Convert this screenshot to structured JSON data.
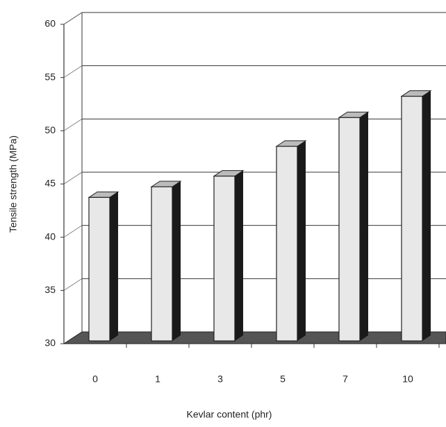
{
  "chart_data": {
    "type": "bar3d",
    "x_label": "Kevlar content (phr)",
    "y_label": "Tensile strength (MPa)",
    "categories": [
      "0",
      "1",
      "3",
      "5",
      "7",
      "10"
    ],
    "values": [
      44,
      45,
      46,
      48.8,
      51.5,
      53.5
    ],
    "color": "#e8e8e8",
    "ylim": [
      30,
      60
    ],
    "yticks": [
      30,
      35,
      40,
      45,
      50,
      55,
      60
    ],
    "grid": true
  }
}
